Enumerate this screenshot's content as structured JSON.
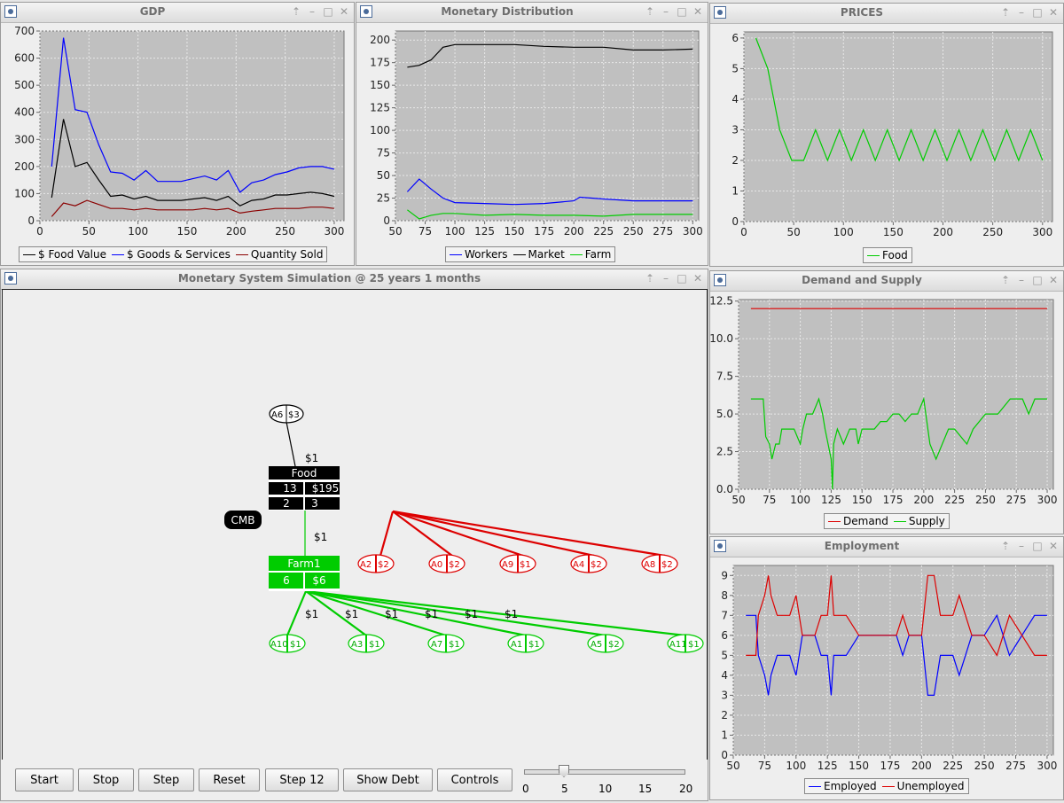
{
  "windows": {
    "gdp": {
      "title": "GDP"
    },
    "money": {
      "title": "Monetary Distribution"
    },
    "prices": {
      "title": "PRICES"
    },
    "sim": {
      "title": "Monetary System Simulation @ 25 years 1 months"
    },
    "ds": {
      "title": "Demand and Supply"
    },
    "emp": {
      "title": "Employment"
    }
  },
  "window_buttons": {
    "pin": "⇡",
    "min": "–",
    "max": "□",
    "close": "✕"
  },
  "colors": {
    "plot_bg": "#c0c0c0",
    "black": "#000000",
    "blue": "#0000ff",
    "darkred": "#8b0000",
    "green": "#00cc00",
    "red": "#dd0000"
  },
  "chart_data": [
    {
      "id": "gdp",
      "type": "line",
      "title": "",
      "xlim": [
        0,
        310
      ],
      "ylim": [
        0,
        700
      ],
      "xticks": [
        0,
        50,
        100,
        150,
        200,
        250,
        300
      ],
      "yticks": [
        0,
        100,
        200,
        300,
        400,
        500,
        600,
        700
      ],
      "legend": "bottom",
      "series": [
        {
          "name": "$ Food Value",
          "color": "#000000",
          "x": [
            12,
            24,
            36,
            48,
            60,
            72,
            84,
            96,
            108,
            120,
            132,
            144,
            156,
            168,
            180,
            192,
            204,
            216,
            228,
            240,
            252,
            264,
            276,
            288,
            300
          ],
          "y": [
            85,
            375,
            200,
            215,
            150,
            90,
            95,
            80,
            90,
            75,
            75,
            75,
            80,
            85,
            75,
            90,
            55,
            75,
            80,
            95,
            95,
            100,
            105,
            100,
            90
          ]
        },
        {
          "name": "$ Goods & Services",
          "color": "#0000ff",
          "x": [
            12,
            24,
            36,
            48,
            60,
            72,
            84,
            96,
            108,
            120,
            132,
            144,
            156,
            168,
            180,
            192,
            204,
            216,
            228,
            240,
            252,
            264,
            276,
            288,
            300
          ],
          "y": [
            200,
            675,
            410,
            400,
            280,
            180,
            175,
            150,
            185,
            145,
            145,
            145,
            155,
            165,
            150,
            185,
            105,
            140,
            150,
            170,
            180,
            195,
            200,
            200,
            190
          ]
        },
        {
          "name": "Quantity Sold",
          "color": "#8b0000",
          "x": [
            12,
            24,
            36,
            48,
            60,
            72,
            84,
            96,
            108,
            120,
            132,
            144,
            156,
            168,
            180,
            192,
            204,
            216,
            228,
            240,
            252,
            264,
            276,
            288,
            300
          ],
          "y": [
            15,
            65,
            55,
            75,
            60,
            45,
            45,
            40,
            45,
            40,
            40,
            40,
            40,
            45,
            40,
            45,
            28,
            35,
            40,
            45,
            45,
            45,
            50,
            50,
            45
          ]
        }
      ]
    },
    {
      "id": "money",
      "type": "line",
      "title": "",
      "xlim": [
        50,
        305
      ],
      "ylim": [
        0,
        210
      ],
      "xticks": [
        50,
        75,
        100,
        125,
        150,
        175,
        200,
        225,
        250,
        275,
        300
      ],
      "yticks": [
        0,
        25,
        50,
        75,
        100,
        125,
        150,
        175,
        200
      ],
      "legend": "bottom",
      "series": [
        {
          "name": "Workers",
          "color": "#0000ff",
          "x": [
            60,
            70,
            80,
            90,
            100,
            125,
            150,
            175,
            200,
            205,
            225,
            250,
            275,
            300
          ],
          "y": [
            32,
            46,
            35,
            25,
            20,
            19,
            18,
            19,
            22,
            26,
            24,
            22,
            22,
            22
          ]
        },
        {
          "name": "Market",
          "color": "#000000",
          "x": [
            60,
            70,
            80,
            85,
            90,
            100,
            125,
            150,
            175,
            200,
            225,
            250,
            275,
            300
          ],
          "y": [
            170,
            172,
            178,
            185,
            192,
            195,
            195,
            195,
            193,
            192,
            192,
            189,
            189,
            190
          ]
        },
        {
          "name": "Farm",
          "color": "#00cc00",
          "x": [
            60,
            70,
            80,
            90,
            100,
            125,
            150,
            175,
            200,
            225,
            250,
            275,
            300
          ],
          "y": [
            12,
            2,
            6,
            8,
            8,
            6,
            7,
            6,
            6,
            5,
            7,
            7,
            7
          ]
        }
      ]
    },
    {
      "id": "prices",
      "type": "line",
      "title": "",
      "xlim": [
        0,
        310
      ],
      "ylim": [
        0,
        6.2
      ],
      "xticks": [
        0,
        50,
        100,
        150,
        200,
        250,
        300
      ],
      "yticks": [
        0,
        1,
        2,
        3,
        4,
        5,
        6
      ],
      "legend": "bottom",
      "series": [
        {
          "name": "Food",
          "color": "#00cc00",
          "x": [
            12,
            24,
            36,
            48,
            60,
            72,
            84,
            96,
            108,
            120,
            132,
            144,
            156,
            168,
            180,
            192,
            204,
            216,
            228,
            240,
            252,
            264,
            276,
            288,
            300
          ],
          "y": [
            6,
            5,
            3,
            2,
            2,
            3,
            2,
            3,
            2,
            3,
            2,
            3,
            2,
            3,
            2,
            3,
            2,
            3,
            2,
            3,
            2,
            3,
            2,
            3,
            2
          ]
        }
      ]
    },
    {
      "id": "ds",
      "type": "line",
      "title": "",
      "xlim": [
        50,
        305
      ],
      "ylim": [
        0,
        12.6
      ],
      "xticks": [
        50,
        75,
        100,
        125,
        150,
        175,
        200,
        225,
        250,
        275,
        300
      ],
      "yticks": [
        0.0,
        2.5,
        5.0,
        7.5,
        10.0,
        12.5
      ],
      "ytick_labels": [
        "0.0",
        "2.5",
        "5.0",
        "7.5",
        "10.0",
        "12.5"
      ],
      "legend": "bottom",
      "series": [
        {
          "name": "Demand",
          "color": "#dd0000",
          "x": [
            60,
            300
          ],
          "y": [
            12,
            12
          ]
        },
        {
          "name": "Supply",
          "color": "#00cc00",
          "x": [
            60,
            70,
            72,
            75,
            77,
            80,
            83,
            85,
            90,
            95,
            100,
            102,
            105,
            110,
            115,
            118,
            120,
            125,
            126,
            127,
            130,
            135,
            140,
            145,
            147,
            150,
            160,
            165,
            170,
            175,
            180,
            185,
            190,
            195,
            200,
            205,
            210,
            215,
            220,
            225,
            235,
            240,
            250,
            260,
            270,
            280,
            285,
            290,
            295,
            300
          ],
          "y": [
            6,
            6,
            3.5,
            3,
            2,
            3,
            3,
            4,
            4,
            4,
            3,
            4,
            5,
            5,
            6,
            5,
            4,
            2,
            0,
            3,
            4,
            3,
            4,
            4,
            3,
            4,
            4,
            4.5,
            4.5,
            5,
            5,
            4.5,
            5,
            5,
            6,
            3,
            2,
            3,
            4,
            4,
            3,
            4,
            5,
            5,
            6,
            6,
            5,
            6,
            6,
            6
          ]
        }
      ]
    },
    {
      "id": "emp",
      "type": "line",
      "title": "",
      "xlim": [
        50,
        305
      ],
      "ylim": [
        0,
        9.5
      ],
      "xticks": [
        50,
        75,
        100,
        125,
        150,
        175,
        200,
        225,
        250,
        275,
        300
      ],
      "yticks": [
        0,
        1,
        2,
        3,
        4,
        5,
        6,
        7,
        8,
        9
      ],
      "legend": "bottom",
      "series": [
        {
          "name": "Employed",
          "color": "#0000ff",
          "x": [
            60,
            68,
            70,
            75,
            78,
            80,
            85,
            90,
            95,
            100,
            105,
            110,
            115,
            120,
            125,
            128,
            130,
            135,
            140,
            150,
            160,
            170,
            180,
            185,
            190,
            195,
            200,
            205,
            210,
            215,
            220,
            225,
            230,
            235,
            240,
            250,
            260,
            270,
            280,
            290,
            300
          ],
          "y": [
            7,
            7,
            5,
            4,
            3,
            4,
            5,
            5,
            5,
            4,
            6,
            6,
            6,
            5,
            5,
            3,
            5,
            5,
            5,
            6,
            6,
            6,
            6,
            5,
            6,
            6,
            6,
            3,
            3,
            5,
            5,
            5,
            4,
            5,
            6,
            6,
            7,
            5,
            6,
            7,
            7
          ]
        },
        {
          "name": "Unemployed",
          "color": "#dd0000",
          "x": [
            60,
            68,
            70,
            75,
            78,
            80,
            85,
            90,
            95,
            100,
            105,
            110,
            115,
            120,
            125,
            128,
            130,
            135,
            140,
            150,
            160,
            170,
            180,
            185,
            190,
            195,
            200,
            205,
            210,
            215,
            220,
            225,
            230,
            235,
            240,
            250,
            260,
            270,
            280,
            290,
            300
          ],
          "y": [
            5,
            5,
            7,
            8,
            9,
            8,
            7,
            7,
            7,
            8,
            6,
            6,
            6,
            7,
            7,
            9,
            7,
            7,
            7,
            6,
            6,
            6,
            6,
            7,
            6,
            6,
            6,
            9,
            9,
            7,
            7,
            7,
            8,
            7,
            6,
            6,
            5,
            7,
            6,
            5,
            5
          ]
        }
      ]
    }
  ],
  "sim": {
    "nodes": {
      "a6": {
        "label": "A6",
        "money": "$3"
      },
      "food": {
        "title": "Food",
        "stock": "13",
        "cash": "$195",
        "c1": "2",
        "c2": "3"
      },
      "cmb": {
        "label": "CMB"
      },
      "farm": {
        "title": "Farm1",
        "stock": "6",
        "cash": "$6"
      },
      "red_agents": [
        {
          "label": "A2",
          "money": "$2"
        },
        {
          "label": "A0",
          "money": "$2"
        },
        {
          "label": "A9",
          "money": "$1"
        },
        {
          "label": "A4",
          "money": "$2"
        },
        {
          "label": "A8",
          "money": "$2"
        }
      ],
      "green_agents": [
        {
          "label": "A10",
          "money": "$1"
        },
        {
          "label": "A3",
          "money": "$1"
        },
        {
          "label": "A7",
          "money": "$1"
        },
        {
          "label": "A1",
          "money": "$1"
        },
        {
          "label": "A5",
          "money": "$2"
        },
        {
          "label": "A11",
          "money": "$1"
        }
      ]
    },
    "edge_labels": {
      "a6_food": "$1",
      "food_farm": "$1",
      "wages": [
        "$1",
        "$1",
        "$1",
        "$1",
        "$1",
        "$1"
      ]
    }
  },
  "controls": {
    "buttons": [
      "Start",
      "Stop",
      "Step",
      "Reset",
      "Step 12",
      "Show Debt",
      "Controls"
    ],
    "slider": {
      "value": 5,
      "min": 0,
      "max": 20,
      "labels": [
        "0",
        "5",
        "10",
        "15",
        "20"
      ]
    }
  }
}
